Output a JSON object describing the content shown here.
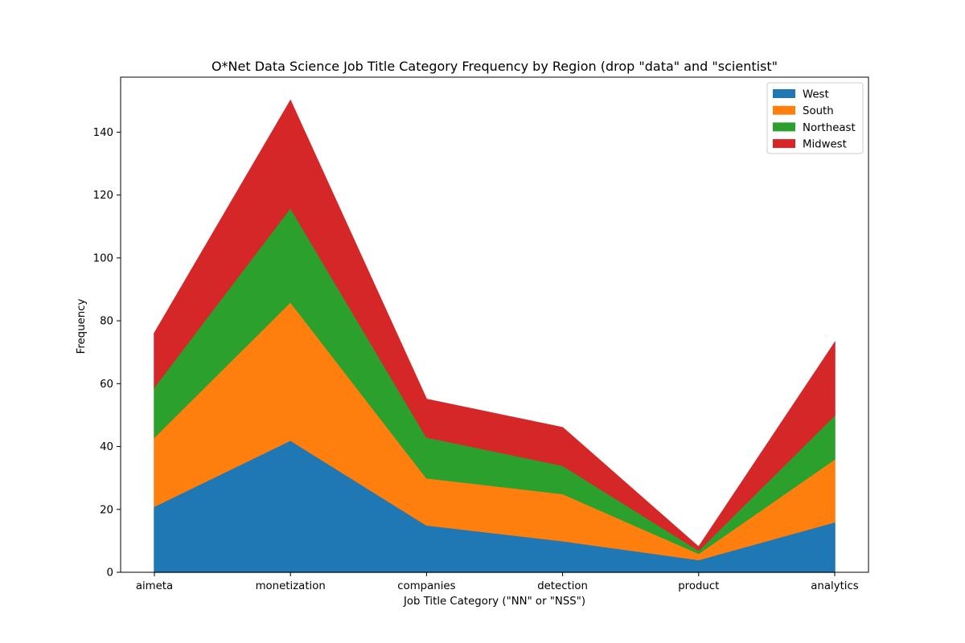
{
  "chart_data": {
    "type": "area",
    "stacked": true,
    "title": "O*Net Data Science Job Title Category Frequency by Region (drop \"data\" and \"scientist\"",
    "xlabel": "Job Title Category (\"NN\" or \"NSS\")",
    "ylabel": "Frequency",
    "categories": [
      "aimeta",
      "monetization",
      "companies",
      "detection",
      "product",
      "analytics"
    ],
    "ylim": [
      0,
      157.5
    ],
    "yticks": [
      0,
      20,
      40,
      60,
      80,
      100,
      120,
      140
    ],
    "grid": false,
    "legend_position": "top-right",
    "series": [
      {
        "name": "West",
        "color": "#1f77b4",
        "values": [
          21,
          42,
          15,
          10,
          4,
          16
        ]
      },
      {
        "name": "South",
        "color": "#ff7f0e",
        "values": [
          22,
          44,
          15,
          15,
          2,
          20
        ]
      },
      {
        "name": "Northeast",
        "color": "#2ca02c",
        "values": [
          16,
          30,
          13,
          9,
          1,
          14
        ]
      },
      {
        "name": "Midwest",
        "color": "#d62728",
        "values": [
          17,
          34,
          12,
          12,
          1,
          23
        ]
      }
    ]
  }
}
